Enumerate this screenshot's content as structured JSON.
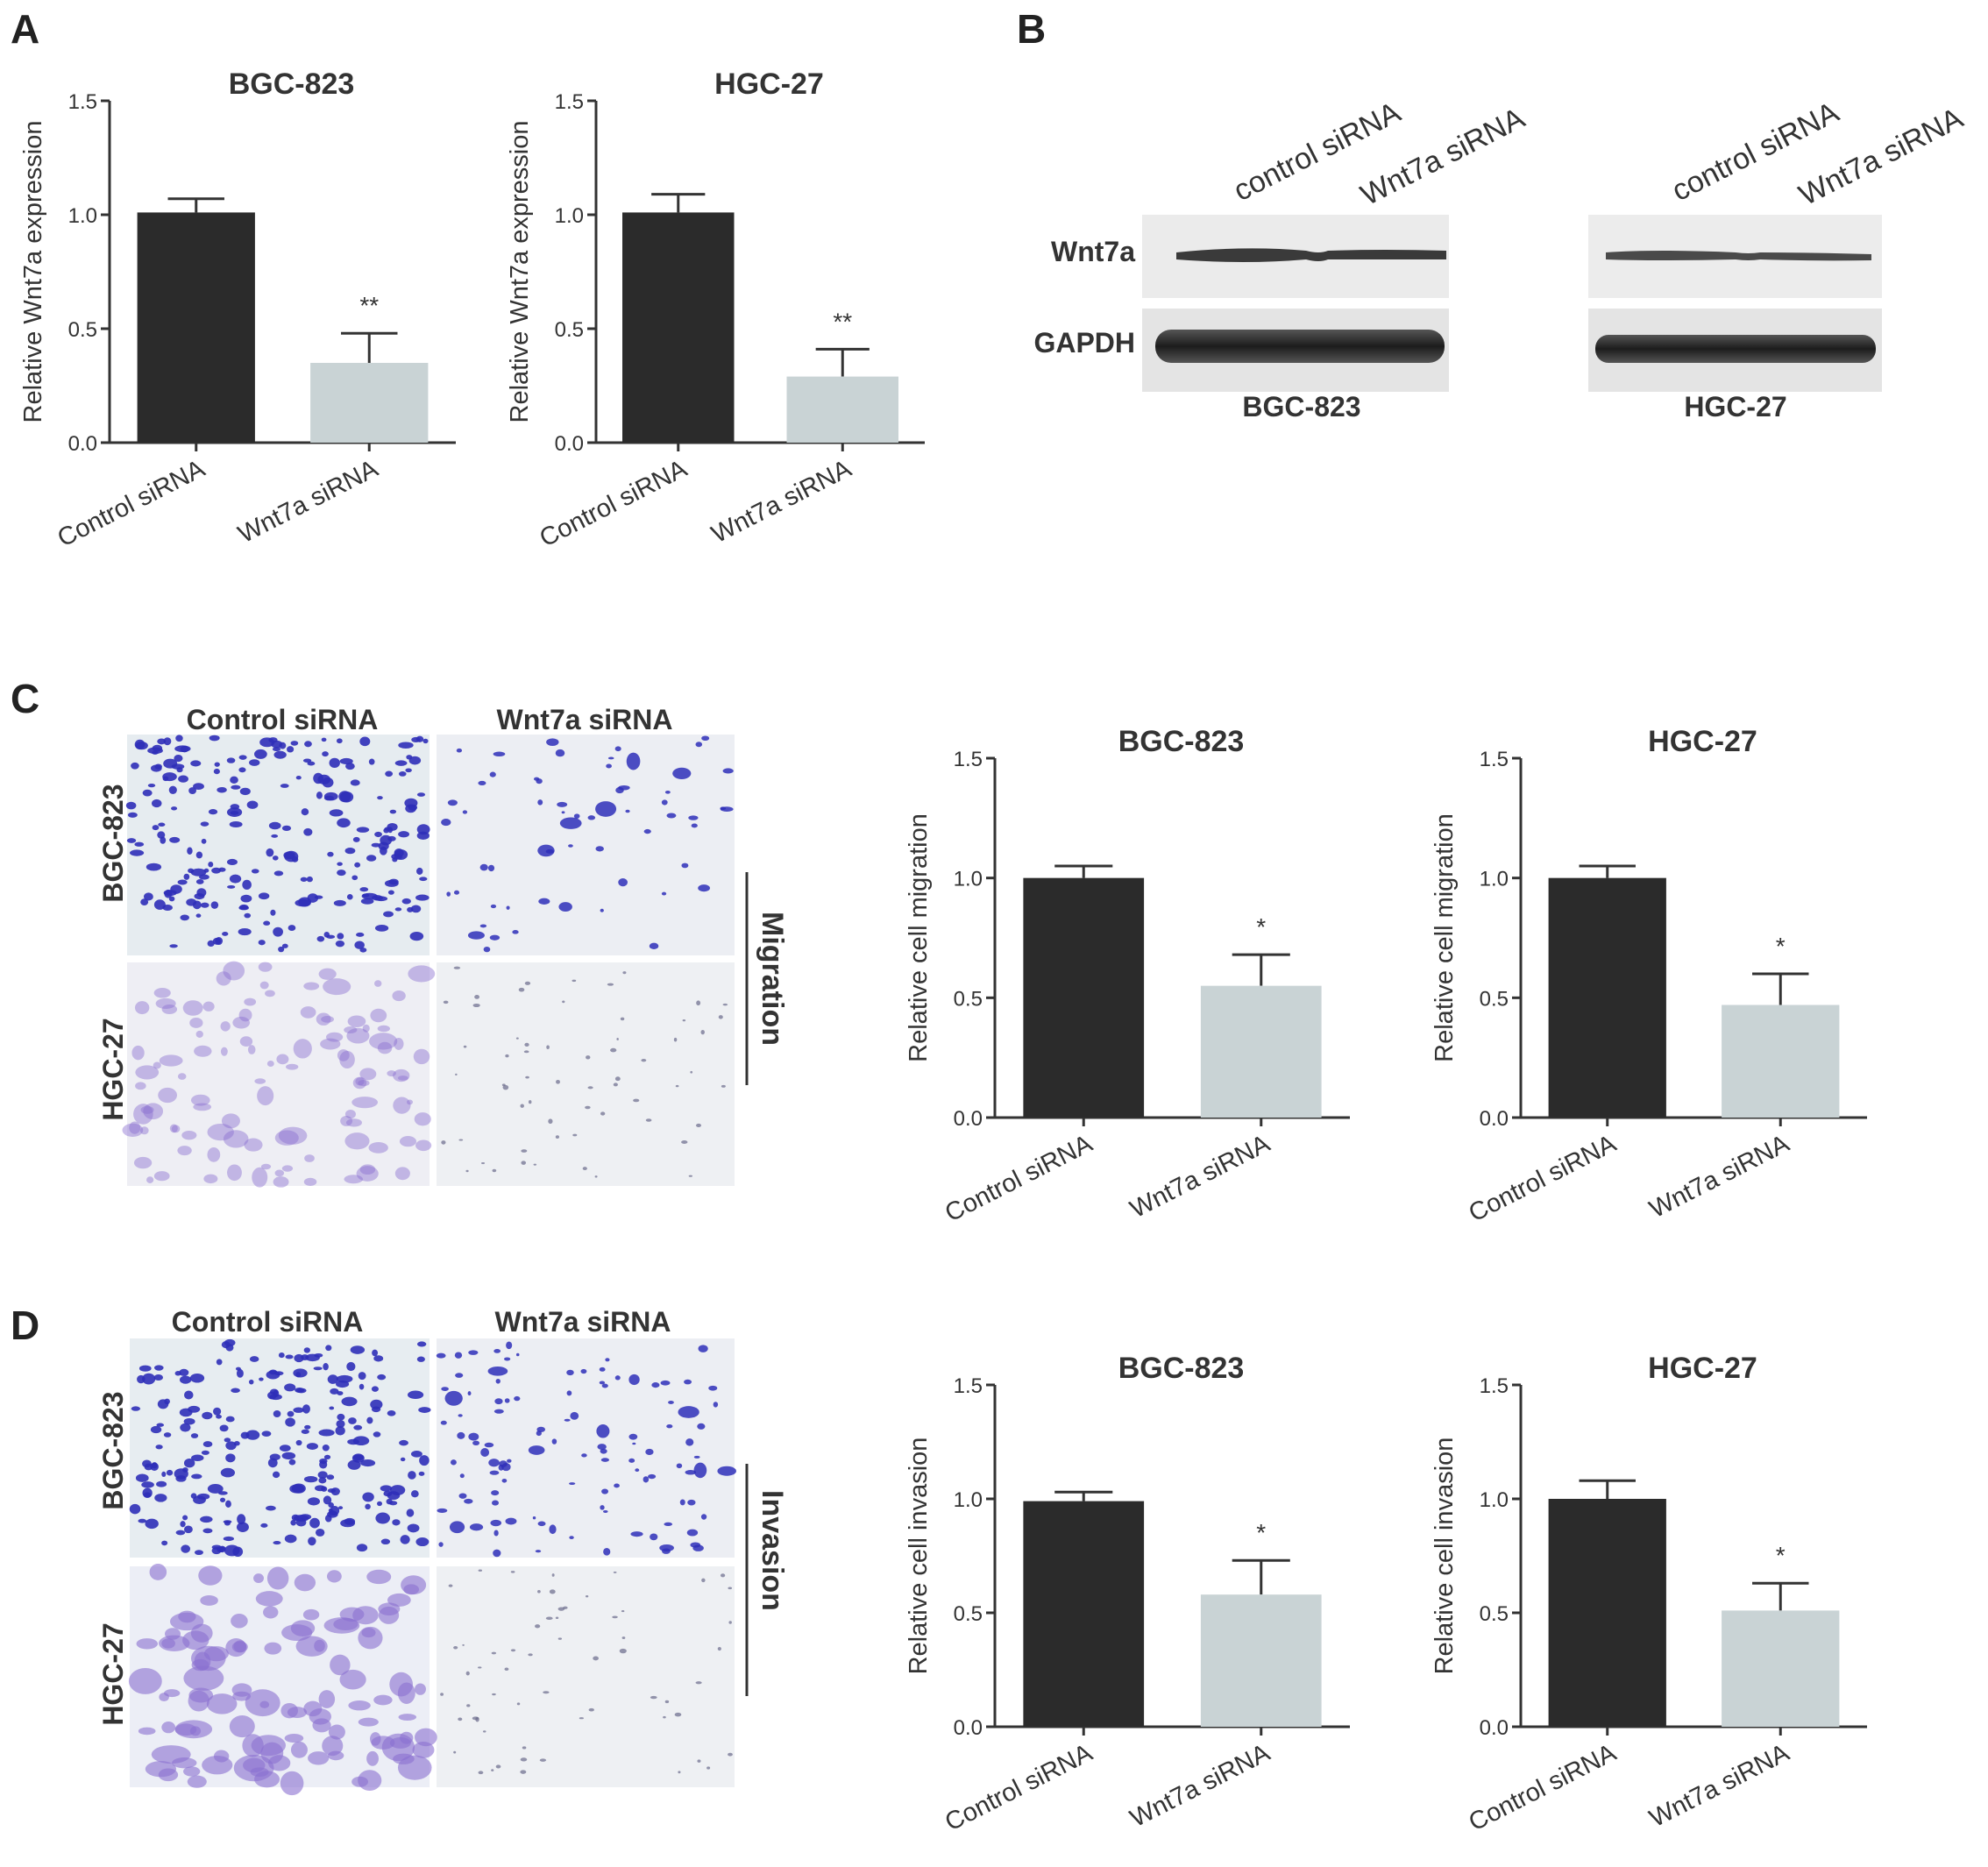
{
  "panels": {
    "a": "A",
    "b": "B",
    "c": "C",
    "d": "D"
  },
  "colors": {
    "control_bar": "#2b2b2b",
    "sirna_bar": "#c9d3d5",
    "axis": "#333333",
    "stain_dark": "#2f2fb8",
    "stain_light": "#8a6fd0"
  },
  "western_blot": {
    "left": {
      "lanes": [
        "control siRNA",
        "Wnt7a siRNA"
      ],
      "proteins": [
        "Wnt7a",
        "GAPDH"
      ],
      "cell_line": "BGC-823"
    },
    "right": {
      "lanes": [
        "control siRNA",
        "Wnt7a siRNA"
      ],
      "cell_line": "HGC-27"
    }
  },
  "micrographs": {
    "c": {
      "columns": [
        "Control siRNA",
        "Wnt7a siRNA"
      ],
      "rows": [
        "BGC-823",
        "HGC-27"
      ],
      "side_label": "Migration"
    },
    "d": {
      "columns": [
        "Control siRNA",
        "Wnt7a siRNA"
      ],
      "rows": [
        "BGC-823",
        "HGC-27"
      ],
      "side_label": "Invasion"
    }
  },
  "chart_data": [
    {
      "id": "a1",
      "type": "bar",
      "title": "BGC-823",
      "categories": [
        "Control siRNA",
        "Wnt7a siRNA"
      ],
      "values": [
        1.01,
        0.35
      ],
      "errors": [
        0.06,
        0.13
      ],
      "significance": [
        "",
        "**"
      ],
      "ylabel": "Relative Wnt7a expression",
      "ylim": [
        0,
        1.5
      ],
      "yticks": [
        "0.0",
        "0.5",
        "1.0",
        "1.5"
      ],
      "tick_values": [
        0,
        0.5,
        1.0,
        1.5
      ]
    },
    {
      "id": "a2",
      "type": "bar",
      "title": "HGC-27",
      "categories": [
        "Control siRNA",
        "Wnt7a siRNA"
      ],
      "values": [
        1.01,
        0.29
      ],
      "errors": [
        0.08,
        0.12
      ],
      "significance": [
        "",
        "**"
      ],
      "ylabel": "Relative Wnt7a expression",
      "ylim": [
        0,
        1.5
      ],
      "yticks": [
        "0.0",
        "0.5",
        "1.0",
        "1.5"
      ],
      "tick_values": [
        0,
        0.5,
        1.0,
        1.5
      ]
    },
    {
      "id": "c1",
      "type": "bar",
      "title": "BGC-823",
      "categories": [
        "Control siRNA",
        "Wnt7a siRNA"
      ],
      "values": [
        1.0,
        0.55
      ],
      "errors": [
        0.05,
        0.13
      ],
      "significance": [
        "",
        "*"
      ],
      "ylabel": "Relative cell migration",
      "ylim": [
        0,
        1.5
      ],
      "yticks": [
        "0.0",
        "0.5",
        "1.0",
        "1.5"
      ],
      "tick_values": [
        0,
        0.5,
        1.0,
        1.5
      ]
    },
    {
      "id": "c2",
      "type": "bar",
      "title": "HGC-27",
      "categories": [
        "Control siRNA",
        "Wnt7a siRNA"
      ],
      "values": [
        1.0,
        0.47
      ],
      "errors": [
        0.05,
        0.13
      ],
      "significance": [
        "",
        "*"
      ],
      "ylabel": "Relative cell migration",
      "ylim": [
        0,
        1.5
      ],
      "yticks": [
        "0.0",
        "0.5",
        "1.0",
        "1.5"
      ],
      "tick_values": [
        0,
        0.5,
        1.0,
        1.5
      ]
    },
    {
      "id": "d1",
      "type": "bar",
      "title": "BGC-823",
      "categories": [
        "Control siRNA",
        "Wnt7a siRNA"
      ],
      "values": [
        0.99,
        0.58
      ],
      "errors": [
        0.04,
        0.15
      ],
      "significance": [
        "",
        "*"
      ],
      "ylabel": "Relative cell invasion",
      "ylim": [
        0,
        1.5
      ],
      "yticks": [
        "0.0",
        "0.5",
        "1.0",
        "1.5"
      ],
      "tick_values": [
        0,
        0.5,
        1.0,
        1.5
      ]
    },
    {
      "id": "d2",
      "type": "bar",
      "title": "HGC-27",
      "categories": [
        "Control siRNA",
        "Wnt7a siRNA"
      ],
      "values": [
        1.0,
        0.51
      ],
      "errors": [
        0.08,
        0.12
      ],
      "significance": [
        "",
        "*"
      ],
      "ylabel": "Relative cell invasion",
      "ylim": [
        0,
        1.5
      ],
      "yticks": [
        "0.0",
        "0.5",
        "1.0",
        "1.5"
      ],
      "tick_values": [
        0,
        0.5,
        1.0,
        1.5
      ]
    }
  ]
}
